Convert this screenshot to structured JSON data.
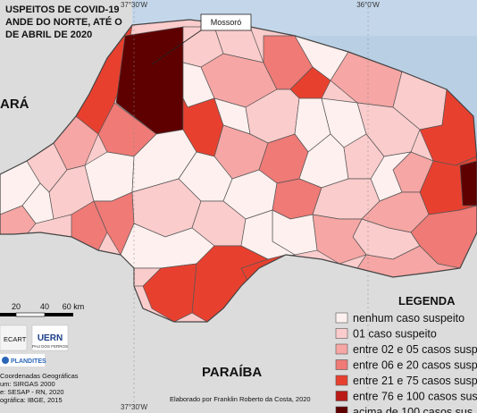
{
  "title_lines": [
    "USPEITOS DE COVID-19",
    "ANDE DO NORTE, ATÉ O",
    "DE ABRIL DE 2020"
  ],
  "coords": {
    "left_top": "37°30'W",
    "right_top": "36°0'W",
    "left_bottom": "37°30'W"
  },
  "callout": "Mossoró",
  "state_labels": {
    "ceara": "ARÁ",
    "paraiba": "PARAÍBA"
  },
  "scale_bar": {
    "ticks": [
      "20",
      "40",
      "60 km"
    ]
  },
  "legend": {
    "title": "LEGENDA",
    "items": [
      {
        "label": "nenhum caso suspeito",
        "color": "#fdf0ee"
      },
      {
        "label": "01 caso suspeito",
        "color": "#fbcccc"
      },
      {
        "label": "entre 02 e 05 casos susp",
        "color": "#f6a6a4"
      },
      {
        "label": "entre 06 e 20 casos susp",
        "color": "#ef7a76"
      },
      {
        "label": "entre 21 e 75 casos susp",
        "color": "#e8402f"
      },
      {
        "label": "entre 76 e 100 casos sus",
        "color": "#ba1a16"
      },
      {
        "label": "acima de 100 casos sus",
        "color": "#5e0000"
      }
    ]
  },
  "logos": {
    "l1": "ECART",
    "l2": "UERN",
    "l2_sub": "PAU DOS FERROS",
    "l3": "PLANDITES"
  },
  "metadata_lines": [
    "Coordenadas Geográficas",
    "um: SIRGAS 2000",
    "e: SESAP - RN, 2020",
    "ográfica: IBGE, 2015"
  ],
  "credit": "Elaborado por Franklin Roberto da Costa, 2020",
  "colors": {
    "ocean": "#b9cfe4",
    "land_outside": "#dcdcdc",
    "border": "#444444"
  }
}
